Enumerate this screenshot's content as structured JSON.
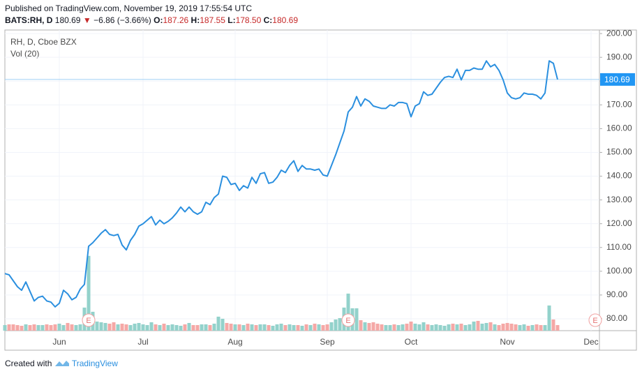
{
  "header": {
    "published": "Published on TradingView.com, November 19, 2019 17:55:54 UTC",
    "symbol": "BATS:RH, D",
    "price": "180.69",
    "arrow": "▼",
    "change": "−6.86 (−3.66%)",
    "open_label": "O:",
    "open": "187.26",
    "high_label": "H:",
    "high": "187.55",
    "low_label": "L:",
    "low": "178.50",
    "close_label": "C:",
    "close": "180.69"
  },
  "footer": {
    "created": "Created with",
    "brand": "TradingView"
  },
  "chart_data": {
    "type": "line",
    "legend": [
      "RH, D, Cboe BZX",
      "Vol (20)"
    ],
    "events": [
      "E",
      "E",
      "E"
    ],
    "categories": [
      null,
      null,
      null,
      null,
      null,
      null,
      null,
      null,
      null,
      null,
      null,
      null,
      null,
      "Jun",
      null,
      null,
      null,
      null,
      null,
      null,
      null,
      null,
      null,
      null,
      null,
      null,
      null,
      null,
      null,
      null,
      null,
      null,
      null,
      "Jul",
      null,
      null,
      null,
      null,
      null,
      null,
      null,
      null,
      null,
      null,
      null,
      null,
      null,
      null,
      null,
      null,
      null,
      null,
      null,
      null,
      null,
      "Aug",
      null,
      null,
      null,
      null,
      null,
      null,
      null,
      null,
      null,
      null,
      null,
      null,
      null,
      null,
      null,
      null,
      null,
      null,
      null,
      null,
      null,
      "Sep",
      null,
      null,
      null,
      null,
      null,
      null,
      null,
      null,
      null,
      null,
      null,
      null,
      null,
      null,
      null,
      null,
      null,
      null,
      null,
      "Oct",
      null,
      null,
      null,
      null,
      null,
      null,
      null,
      null,
      null,
      null,
      null,
      null,
      null,
      null,
      null,
      null,
      null,
      null,
      null,
      null,
      null,
      null,
      "Nov",
      null,
      null,
      null,
      null,
      null,
      null,
      null,
      null,
      null,
      null,
      null,
      null,
      null,
      null,
      null,
      null,
      null,
      null,
      null,
      "Dec",
      null,
      null
    ],
    "series": [
      {
        "name": "RH, D, Cboe BZX",
        "color": "#2a8fdf",
        "values": [
          99,
          98.5,
          96,
          93.5,
          92,
          95.5,
          91.5,
          87.5,
          89,
          89.5,
          87.5,
          87,
          85,
          86.5,
          92,
          90.5,
          88,
          89,
          92.5,
          94.5,
          110.5,
          112,
          114,
          116,
          117.5,
          115.5,
          115,
          115.5,
          111,
          109,
          113,
          115.5,
          119,
          120,
          121.5,
          123,
          119.5,
          121.5,
          120,
          121,
          122.5,
          124.5,
          127,
          125,
          127,
          125,
          124,
          125,
          129,
          128,
          131,
          132.5,
          140,
          139.5,
          136.5,
          137,
          134,
          136,
          135,
          139.5,
          137,
          141,
          141.5,
          137,
          137.5,
          139.5,
          142.5,
          141.5,
          144.5,
          146.5,
          142,
          144.5,
          143,
          143,
          142.5,
          143,
          140.5,
          140,
          144.5,
          149,
          154,
          159,
          167,
          169,
          173.5,
          169.5,
          172.5,
          171.5,
          169.5,
          169,
          168.5,
          168.5,
          170,
          169.5,
          171,
          171,
          170.5,
          165,
          169.5,
          170.5,
          175.5,
          174,
          174.5,
          177,
          179.5,
          181.5,
          182,
          181.5,
          185,
          180.5,
          184.5,
          184.5,
          185.5,
          185,
          185,
          188.5,
          186,
          187,
          184.5,
          180.5,
          175,
          173,
          172.5,
          173,
          175,
          174.5,
          174.5,
          174,
          172.5,
          175,
          188.5,
          187.5,
          180.69,
          null,
          null,
          null,
          null,
          null,
          null,
          null,
          null,
          null,
          null
        ]
      },
      {
        "name": "Vol (20)",
        "axis": "y2",
        "up_color": "#93d2cb",
        "down_color": "#f5a8a6",
        "values": [
          0.8,
          0.9,
          0.9,
          0.8,
          0.7,
          0.9,
          0.8,
          0.9,
          0.8,
          0.8,
          0.9,
          0.8,
          0.9,
          1.0,
          0.8,
          1.1,
          0.9,
          0.8,
          0.9,
          3.3,
          10.7,
          2.7,
          1.3,
          1.2,
          1.1,
          1.0,
          1.2,
          0.9,
          1.0,
          0.9,
          0.8,
          1.0,
          1.1,
          0.9,
          0.8,
          1.2,
          0.9,
          0.8,
          1.0,
          0.8,
          0.9,
          0.8,
          0.7,
          0.9,
          1.1,
          0.8,
          0.8,
          0.9,
          0.9,
          0.8,
          1.0,
          2.0,
          1.7,
          1.1,
          1.0,
          0.9,
          0.9,
          0.8,
          1.0,
          0.9,
          0.8,
          0.9,
          0.9,
          0.8,
          0.7,
          0.9,
          1.0,
          0.8,
          0.9,
          0.8,
          0.8,
          0.7,
          0.9,
          0.8,
          1.0,
          0.9,
          0.8,
          0.9,
          1.2,
          1.6,
          1.8,
          3.3,
          5.3,
          3.2,
          3.2,
          1.5,
          1.2,
          1.1,
          1.2,
          1.0,
          0.9,
          0.8,
          0.8,
          0.9,
          0.8,
          0.9,
          1.0,
          1.3,
          1.0,
          0.9,
          1.2,
          0.9,
          0.8,
          0.9,
          0.8,
          0.7,
          0.9,
          1.0,
          0.9,
          1.0,
          0.8,
          0.9,
          1.3,
          1.4,
          1.0,
          1.1,
          1.2,
          0.9,
          0.8,
          1.0,
          1.1,
          1.0,
          0.9,
          0.8,
          0.9,
          0.7,
          0.8,
          0.9,
          0.8,
          0.8,
          3.6,
          1.6,
          0.8,
          null,
          null,
          null,
          null,
          null,
          null,
          null,
          null,
          null,
          null
        ]
      }
    ],
    "ylim": [
      75,
      201.5
    ],
    "yticks": [
      {
        "value": 80,
        "label": "80.00"
      },
      {
        "value": 90,
        "label": "90.00"
      },
      {
        "value": 100,
        "label": "100.00"
      },
      {
        "value": 110,
        "label": "110.00"
      },
      {
        "value": 120,
        "label": "120.00"
      },
      {
        "value": 130,
        "label": "130.00"
      },
      {
        "value": 140,
        "label": "140.00"
      },
      {
        "value": 150,
        "label": "150.00"
      },
      {
        "value": 160,
        "label": "160.00"
      },
      {
        "value": 170,
        "label": "170.00"
      },
      {
        "value": 180,
        "label": "180.00"
      },
      {
        "value": 190,
        "label": "190.00"
      },
      {
        "value": 200,
        "label": "200.00"
      }
    ],
    "y2lim": [
      0,
      43
    ],
    "grid": true,
    "last_price_color": "#2196f3"
  }
}
